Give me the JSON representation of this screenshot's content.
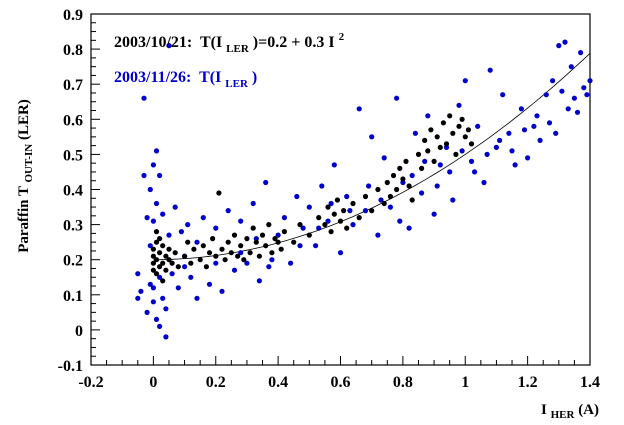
{
  "chart_data": {
    "type": "scatter",
    "title": "",
    "xlabel": {
      "main": "I",
      "sub": "HER",
      "tail": "(A)"
    },
    "ylabel": {
      "main": "Paraffin T",
      "sub": "OUT-IN",
      "tail": "(LER)"
    },
    "xlim": [
      -0.2,
      1.4
    ],
    "ylim": [
      -0.1,
      0.9
    ],
    "xticks": [
      "-0.2",
      "0",
      "0.2",
      "0.4",
      "0.6",
      "0.8",
      "1",
      "1.2",
      "1.4"
    ],
    "yticks": [
      "-0.1",
      "0",
      "0.1",
      "0.2",
      "0.3",
      "0.4",
      "0.5",
      "0.6",
      "0.7",
      "0.8",
      "0.9"
    ],
    "grid": false,
    "annotations": [
      {
        "date": "2003/10/21:",
        "formula_prefix": "T(I",
        "formula_sub": "LER",
        "formula_mid": ")=0.2 + 0.3 I",
        "formula_sup": "2",
        "color": "#000000"
      },
      {
        "date": "2003/11/26:",
        "formula_prefix": "T(I",
        "formula_sub": "LER",
        "formula_mid": ")",
        "formula_sup": "",
        "color": "#0000cc"
      }
    ],
    "fit_curve": {
      "intercept": 0.2,
      "quad_coef": 0.3,
      "x_range": [
        0.0,
        1.4
      ],
      "color": "#000000"
    },
    "series": [
      {
        "name": "2003/10/21",
        "color": "#000000",
        "points": [
          [
            0.0,
            0.17
          ],
          [
            0.0,
            0.19
          ],
          [
            0.0,
            0.21
          ],
          [
            0.0,
            0.23
          ],
          [
            0.01,
            0.16
          ],
          [
            0.01,
            0.2
          ],
          [
            0.01,
            0.25
          ],
          [
            0.01,
            0.28
          ],
          [
            0.02,
            0.18
          ],
          [
            0.02,
            0.22
          ],
          [
            0.02,
            0.26
          ],
          [
            0.03,
            0.14
          ],
          [
            0.03,
            0.19
          ],
          [
            0.03,
            0.24
          ],
          [
            0.04,
            0.17
          ],
          [
            0.04,
            0.21
          ],
          [
            0.05,
            0.2
          ],
          [
            0.05,
            0.23
          ],
          [
            0.06,
            0.19
          ],
          [
            0.07,
            0.22
          ],
          [
            0.08,
            0.18
          ],
          [
            0.1,
            0.21
          ],
          [
            0.11,
            0.25
          ],
          [
            0.12,
            0.19
          ],
          [
            0.13,
            0.23
          ],
          [
            0.15,
            0.2
          ],
          [
            0.16,
            0.24
          ],
          [
            0.17,
            0.18
          ],
          [
            0.18,
            0.22
          ],
          [
            0.19,
            0.26
          ],
          [
            0.2,
            0.21
          ],
          [
            0.21,
            0.39
          ],
          [
            0.22,
            0.23
          ],
          [
            0.23,
            0.2
          ],
          [
            0.24,
            0.25
          ],
          [
            0.25,
            0.22
          ],
          [
            0.26,
            0.27
          ],
          [
            0.27,
            0.21
          ],
          [
            0.28,
            0.24
          ],
          [
            0.29,
            0.2
          ],
          [
            0.3,
            0.26
          ],
          [
            0.31,
            0.22
          ],
          [
            0.32,
            0.29
          ],
          [
            0.33,
            0.25
          ],
          [
            0.34,
            0.21
          ],
          [
            0.35,
            0.27
          ],
          [
            0.36,
            0.24
          ],
          [
            0.37,
            0.3
          ],
          [
            0.38,
            0.22
          ],
          [
            0.39,
            0.26
          ],
          [
            0.4,
            0.25
          ],
          [
            0.41,
            0.23
          ],
          [
            0.42,
            0.28
          ],
          [
            0.45,
            0.25
          ],
          [
            0.47,
            0.3
          ],
          [
            0.5,
            0.27
          ],
          [
            0.53,
            0.32
          ],
          [
            0.55,
            0.3
          ],
          [
            0.56,
            0.35
          ],
          [
            0.57,
            0.28
          ],
          [
            0.58,
            0.33
          ],
          [
            0.59,
            0.37
          ],
          [
            0.6,
            0.31
          ],
          [
            0.61,
            0.34
          ],
          [
            0.62,
            0.29
          ],
          [
            0.64,
            0.36
          ],
          [
            0.66,
            0.32
          ],
          [
            0.68,
            0.38
          ],
          [
            0.7,
            0.34
          ],
          [
            0.72,
            0.4
          ],
          [
            0.74,
            0.36
          ],
          [
            0.75,
            0.42
          ],
          [
            0.76,
            0.38
          ],
          [
            0.77,
            0.44
          ],
          [
            0.78,
            0.4
          ],
          [
            0.79,
            0.46
          ],
          [
            0.8,
            0.43
          ],
          [
            0.81,
            0.48
          ],
          [
            0.82,
            0.41
          ],
          [
            0.83,
            0.37
          ],
          [
            0.85,
            0.5
          ],
          [
            0.86,
            0.46
          ],
          [
            0.87,
            0.54
          ],
          [
            0.88,
            0.51
          ],
          [
            0.89,
            0.57
          ],
          [
            0.9,
            0.48
          ],
          [
            0.91,
            0.55
          ],
          [
            0.92,
            0.52
          ],
          [
            0.93,
            0.59
          ],
          [
            0.94,
            0.53
          ],
          [
            0.95,
            0.61
          ],
          [
            0.96,
            0.56
          ],
          [
            0.97,
            0.5
          ],
          [
            0.98,
            0.58
          ],
          [
            0.99,
            0.6
          ],
          [
            1.0,
            0.55
          ],
          [
            1.01,
            0.57
          ],
          [
            1.02,
            0.53
          ]
        ]
      },
      {
        "name": "2003/11/26",
        "color": "#0000cc",
        "points": [
          [
            -0.05,
            0.16
          ],
          [
            -0.05,
            0.09
          ],
          [
            -0.04,
            0.11
          ],
          [
            -0.03,
            0.66
          ],
          [
            -0.03,
            0.44
          ],
          [
            -0.02,
            0.32
          ],
          [
            -0.02,
            0.05
          ],
          [
            -0.01,
            0.13
          ],
          [
            -0.01,
            0.4
          ],
          [
            -0.01,
            0.24
          ],
          [
            0.0,
            0.47
          ],
          [
            0.0,
            0.31
          ],
          [
            0.0,
            0.12
          ],
          [
            0.0,
            0.08
          ],
          [
            0.01,
            0.51
          ],
          [
            0.01,
            0.36
          ],
          [
            0.01,
            0.03
          ],
          [
            0.02,
            0.44
          ],
          [
            0.02,
            0.15
          ],
          [
            0.02,
            0.01
          ],
          [
            0.03,
            0.09
          ],
          [
            0.03,
            0.33
          ],
          [
            0.04,
            0.06
          ],
          [
            0.04,
            -0.02
          ],
          [
            0.05,
            0.27
          ],
          [
            0.05,
            0.81
          ],
          [
            0.06,
            0.16
          ],
          [
            0.07,
            0.35
          ],
          [
            0.08,
            0.12
          ],
          [
            0.09,
            0.28
          ],
          [
            0.1,
            0.18
          ],
          [
            0.11,
            0.3
          ],
          [
            0.12,
            0.15
          ],
          [
            0.14,
            0.25
          ],
          [
            0.16,
            0.32
          ],
          [
            0.18,
            0.13
          ],
          [
            0.2,
            0.29
          ],
          [
            0.22,
            0.11
          ],
          [
            0.24,
            0.34
          ],
          [
            0.26,
            0.17
          ],
          [
            0.28,
            0.31
          ],
          [
            0.3,
            0.19
          ],
          [
            0.32,
            0.36
          ],
          [
            0.34,
            0.14
          ],
          [
            0.36,
            0.42
          ],
          [
            0.38,
            0.2
          ],
          [
            0.4,
            0.27
          ],
          [
            0.42,
            0.32
          ],
          [
            0.44,
            0.19
          ],
          [
            0.46,
            0.38
          ],
          [
            0.48,
            0.29
          ],
          [
            0.5,
            0.35
          ],
          [
            0.52,
            0.24
          ],
          [
            0.54,
            0.41
          ],
          [
            0.56,
            0.31
          ],
          [
            0.58,
            0.47
          ],
          [
            0.6,
            0.22
          ],
          [
            0.62,
            0.38
          ],
          [
            0.64,
            0.3
          ],
          [
            0.66,
            0.63
          ],
          [
            0.68,
            0.34
          ],
          [
            0.7,
            0.55
          ],
          [
            0.72,
            0.27
          ],
          [
            0.74,
            0.49
          ],
          [
            0.76,
            0.35
          ],
          [
            0.78,
            0.66
          ],
          [
            0.8,
            0.42
          ],
          [
            0.82,
            0.29
          ],
          [
            0.84,
            0.56
          ],
          [
            0.86,
            0.39
          ],
          [
            0.88,
            0.61
          ],
          [
            0.9,
            0.33
          ],
          [
            0.92,
            0.47
          ],
          [
            0.94,
            0.52
          ],
          [
            0.96,
            0.37
          ],
          [
            0.98,
            0.64
          ],
          [
            1.0,
            0.71
          ],
          [
            1.02,
            0.48
          ],
          [
            1.04,
            0.58
          ],
          [
            1.06,
            0.42
          ],
          [
            1.08,
            0.74
          ],
          [
            1.1,
            0.52
          ],
          [
            1.12,
            0.67
          ],
          [
            1.14,
            0.56
          ],
          [
            1.16,
            0.47
          ],
          [
            1.18,
            0.63
          ],
          [
            1.2,
            0.49
          ],
          [
            1.22,
            0.58
          ],
          [
            1.24,
            0.54
          ],
          [
            1.26,
            0.67
          ],
          [
            1.27,
            0.59
          ],
          [
            1.28,
            0.71
          ],
          [
            1.29,
            0.56
          ],
          [
            1.3,
            0.81
          ],
          [
            1.31,
            0.68
          ],
          [
            1.32,
            0.82
          ],
          [
            1.33,
            0.63
          ],
          [
            1.34,
            0.75
          ],
          [
            1.35,
            0.66
          ],
          [
            1.36,
            0.62
          ],
          [
            1.37,
            0.79
          ],
          [
            1.38,
            0.69
          ],
          [
            1.39,
            0.67
          ],
          [
            1.4,
            0.71
          ],
          [
            0.1,
            0.21
          ],
          [
            0.14,
            0.09
          ],
          [
            0.2,
            0.19
          ],
          [
            0.28,
            0.22
          ],
          [
            0.33,
            0.26
          ],
          [
            0.37,
            0.18
          ],
          [
            0.47,
            0.24
          ],
          [
            0.53,
            0.29
          ],
          [
            0.57,
            0.36
          ],
          [
            0.63,
            0.34
          ],
          [
            0.69,
            0.41
          ],
          [
            0.73,
            0.37
          ],
          [
            0.79,
            0.31
          ],
          [
            0.83,
            0.44
          ],
          [
            0.87,
            0.48
          ],
          [
            0.91,
            0.41
          ],
          [
            0.95,
            0.45
          ],
          [
            0.99,
            0.51
          ],
          [
            1.03,
            0.45
          ],
          [
            1.07,
            0.5
          ],
          [
            1.11,
            0.54
          ],
          [
            1.15,
            0.51
          ],
          [
            1.19,
            0.57
          ],
          [
            1.23,
            0.61
          ]
        ]
      }
    ]
  }
}
